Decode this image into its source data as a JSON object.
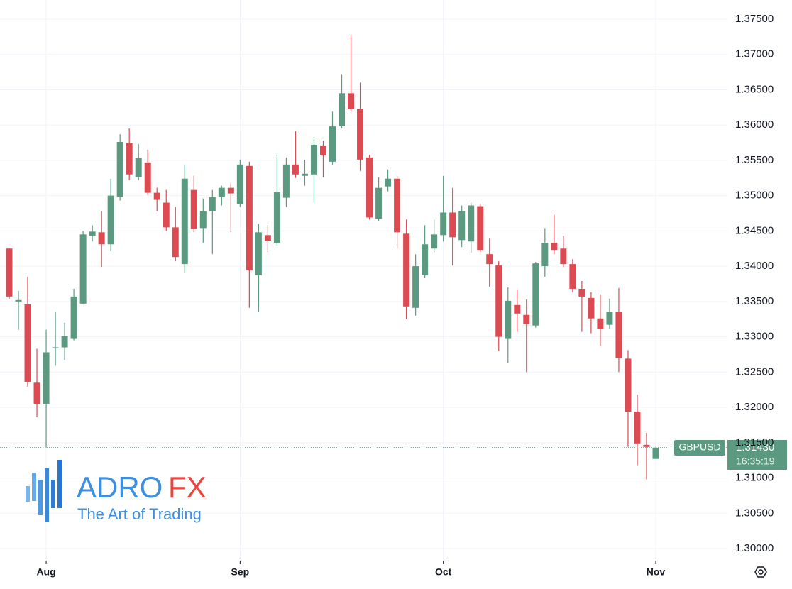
{
  "chart_data": {
    "type": "candlestick",
    "symbol": "GBPUSD",
    "last_price": 1.3143,
    "last_price_label": "1.31430",
    "countdown": "16:35:19",
    "brand": {
      "name": "ADRO",
      "suffix": "FX",
      "tagline": "The Art of Trading"
    },
    "up_color": "#5b9a80",
    "down_color": "#dc4a52",
    "grid": true,
    "categories": [
      null,
      null,
      null,
      null,
      "Aug",
      null,
      null,
      null,
      null,
      null,
      null,
      null,
      null,
      null,
      null,
      null,
      null,
      null,
      null,
      null,
      null,
      null,
      null,
      null,
      null,
      "Sep",
      null,
      null,
      null,
      null,
      null,
      null,
      null,
      null,
      null,
      null,
      null,
      null,
      null,
      null,
      null,
      null,
      null,
      null,
      null,
      null,
      null,
      "Oct",
      null,
      null,
      null,
      null,
      null,
      null,
      null,
      null,
      null,
      null,
      null,
      null,
      null,
      null,
      null,
      null,
      null,
      null,
      null,
      null,
      null,
      null,
      "Nov"
    ],
    "open": [
      1.3425,
      1.335,
      1.3346,
      1.3235,
      1.3205,
      1.3284,
      1.3285,
      1.3297,
      1.3347,
      1.3443,
      1.3448,
      1.3431,
      1.3498,
      1.3574,
      1.3526,
      1.3547,
      1.3504,
      1.349,
      1.3455,
      1.3403,
      1.3508,
      1.3454,
      1.3478,
      1.3498,
      1.3511,
      1.3488,
      1.3542,
      1.3387,
      1.3444,
      1.3433,
      1.3497,
      1.3544,
      1.3528,
      1.353,
      1.357,
      1.3548,
      1.3598,
      1.3645,
      1.3623,
      1.3554,
      1.3467,
      1.3513,
      1.3524,
      1.3446,
      1.3341,
      1.3387,
      1.3425,
      1.3444,
      1.3476,
      1.3437,
      1.3435,
      1.3485,
      1.3417,
      1.3401,
      1.3297,
      1.3345,
      1.3331,
      1.3316,
      1.34,
      1.3433,
      1.3425,
      1.3403,
      1.3368,
      1.3355,
      1.3326,
      1.3317,
      1.3335,
      1.3269,
      1.3194,
      1.3147,
      1.3127
    ],
    "high": [
      1.3426,
      1.3365,
      1.3385,
      1.3283,
      1.331,
      1.3335,
      1.332,
      1.3368,
      1.345,
      1.3458,
      1.3478,
      1.3524,
      1.3587,
      1.3595,
      1.3573,
      1.3565,
      1.3511,
      1.3508,
      1.3484,
      1.3544,
      1.3528,
      1.3496,
      1.3508,
      1.3514,
      1.3518,
      1.3551,
      1.3548,
      1.346,
      1.3458,
      1.3558,
      1.3554,
      1.3591,
      1.3551,
      1.3583,
      1.3578,
      1.3619,
      1.3672,
      1.3727,
      1.366,
      1.3558,
      1.3526,
      1.3537,
      1.3528,
      1.3466,
      1.3417,
      1.3458,
      1.3466,
      1.3528,
      1.3511,
      1.3486,
      1.349,
      1.3488,
      1.3439,
      1.3407,
      1.337,
      1.3367,
      1.3353,
      1.3406,
      1.3454,
      1.3473,
      1.3443,
      1.341,
      1.3379,
      1.3363,
      1.336,
      1.3354,
      1.3369,
      1.3281,
      1.3218,
      1.3164,
      1.3144
    ],
    "low": [
      1.3354,
      1.331,
      1.3229,
      1.3186,
      1.3143,
      1.3259,
      1.3267,
      1.3295,
      1.3346,
      1.3435,
      1.3399,
      1.3421,
      1.3493,
      1.3522,
      1.3522,
      1.3501,
      1.3478,
      1.345,
      1.3407,
      1.3391,
      1.3448,
      1.3433,
      1.3417,
      1.3486,
      1.3448,
      1.3484,
      1.3341,
      1.3335,
      1.342,
      1.3429,
      1.3484,
      1.3525,
      1.3514,
      1.349,
      1.3526,
      1.3544,
      1.3595,
      1.3619,
      1.3535,
      1.3466,
      1.3464,
      1.3506,
      1.3425,
      1.3325,
      1.333,
      1.3383,
      1.342,
      1.3435,
      1.3401,
      1.3427,
      1.3419,
      1.342,
      1.3371,
      1.328,
      1.3263,
      1.3307,
      1.325,
      1.3313,
      1.3385,
      1.3417,
      1.3399,
      1.3363,
      1.3307,
      1.3305,
      1.3287,
      1.3311,
      1.325,
      1.3144,
      1.3118,
      1.3098,
      1.3127
    ],
    "close": [
      1.3357,
      1.3352,
      1.3236,
      1.3205,
      1.3278,
      1.3285,
      1.3301,
      1.3357,
      1.3445,
      1.3449,
      1.3431,
      1.35,
      1.3576,
      1.353,
      1.3553,
      1.3504,
      1.3494,
      1.3455,
      1.3413,
      1.3524,
      1.3453,
      1.3478,
      1.3498,
      1.3511,
      1.3503,
      1.3544,
      1.3394,
      1.3448,
      1.3436,
      1.3505,
      1.3544,
      1.353,
      1.3531,
      1.3572,
      1.3557,
      1.3598,
      1.3645,
      1.3623,
      1.3551,
      1.3469,
      1.3511,
      1.3524,
      1.3448,
      1.3343,
      1.34,
      1.3431,
      1.3445,
      1.3476,
      1.3441,
      1.3478,
      1.3486,
      1.3423,
      1.3403,
      1.33,
      1.3351,
      1.3333,
      1.3318,
      1.3404,
      1.3433,
      1.3423,
      1.3403,
      1.3368,
      1.3357,
      1.3326,
      1.3311,
      1.3335,
      1.327,
      1.3194,
      1.3149,
      1.3144,
      1.3143
    ],
    "ylim": [
      1.2983,
      1.3777
    ],
    "yticks": [
      {
        "value": 1.3,
        "label": "1.30000"
      },
      {
        "value": 1.305,
        "label": "1.30500"
      },
      {
        "value": 1.31,
        "label": "1.31000"
      },
      {
        "value": 1.315,
        "label": "1.31500"
      },
      {
        "value": 1.32,
        "label": "1.32000"
      },
      {
        "value": 1.325,
        "label": "1.32500"
      },
      {
        "value": 1.33,
        "label": "1.33000"
      },
      {
        "value": 1.335,
        "label": "1.33500"
      },
      {
        "value": 1.34,
        "label": "1.34000"
      },
      {
        "value": 1.345,
        "label": "1.34500"
      },
      {
        "value": 1.35,
        "label": "1.35000"
      },
      {
        "value": 1.355,
        "label": "1.35500"
      },
      {
        "value": 1.36,
        "label": "1.36000"
      },
      {
        "value": 1.365,
        "label": "1.36500"
      },
      {
        "value": 1.37,
        "label": "1.37000"
      },
      {
        "value": 1.375,
        "label": "1.37500"
      }
    ]
  }
}
